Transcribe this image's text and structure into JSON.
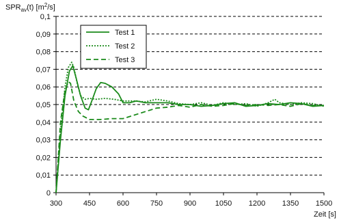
{
  "chart_data": {
    "type": "line",
    "ylabel_main": "SPR",
    "ylabel_sub": "av",
    "ylabel_rest": "(t) [m",
    "ylabel_sup": "2",
    "ylabel_end": "/s]",
    "xlabel": "Zeit [s]",
    "xlim": [
      300,
      1500
    ],
    "ylim": [
      0,
      0.1
    ],
    "x_ticks": [
      300,
      450,
      600,
      750,
      900,
      1050,
      1200,
      1350,
      1500
    ],
    "x_tick_labels": [
      "300",
      "450",
      "600",
      "750",
      "900",
      "1050",
      "1200",
      "1350",
      "1500"
    ],
    "y_ticks": [
      0,
      0.01,
      0.02,
      0.03,
      0.04,
      0.05,
      0.06,
      0.07,
      0.08,
      0.09,
      0.1
    ],
    "y_tick_labels": [
      "0",
      "0,01",
      "0,02",
      "0,03",
      "0,04",
      "0,05",
      "0,06",
      "0,07",
      "0,08",
      "0,09",
      "0,1"
    ],
    "grid": "horizontal-dashed",
    "legend_position": "top-left",
    "line_color": "#1a8a1a",
    "series": [
      {
        "name": "Test 1",
        "style": "solid",
        "x": [
          300,
          320,
          340,
          360,
          375,
          390,
          410,
          430,
          445,
          460,
          480,
          500,
          520,
          550,
          580,
          600,
          630,
          660,
          700,
          750,
          800,
          850,
          900,
          950,
          1000,
          1050,
          1100,
          1150,
          1200,
          1250,
          1300,
          1350,
          1400,
          1450,
          1500
        ],
        "y": [
          0,
          0.03,
          0.055,
          0.069,
          0.072,
          0.065,
          0.055,
          0.048,
          0.047,
          0.052,
          0.059,
          0.0625,
          0.062,
          0.06,
          0.056,
          0.051,
          0.051,
          0.052,
          0.051,
          0.051,
          0.051,
          0.05,
          0.05,
          0.049,
          0.0495,
          0.0505,
          0.051,
          0.049,
          0.0495,
          0.0505,
          0.05,
          0.051,
          0.0505,
          0.049,
          0.0495
        ]
      },
      {
        "name": "Test 2",
        "style": "dotted",
        "x": [
          300,
          320,
          340,
          355,
          370,
          380,
          395,
          410,
          430,
          450,
          480,
          520,
          560,
          600,
          650,
          700,
          750,
          800,
          850,
          900,
          950,
          1000,
          1050,
          1100,
          1150,
          1200,
          1250,
          1280,
          1300,
          1350,
          1400,
          1450,
          1500
        ],
        "y": [
          0,
          0.035,
          0.06,
          0.071,
          0.074,
          0.071,
          0.062,
          0.055,
          0.053,
          0.0535,
          0.053,
          0.0535,
          0.053,
          0.052,
          0.052,
          0.0515,
          0.053,
          0.052,
          0.0505,
          0.05,
          0.051,
          0.0495,
          0.051,
          0.05,
          0.0505,
          0.049,
          0.051,
          0.053,
          0.051,
          0.05,
          0.051,
          0.0505,
          0.049
        ]
      },
      {
        "name": "Test 3",
        "style": "dashed",
        "x": [
          300,
          320,
          340,
          355,
          365,
          380,
          400,
          420,
          450,
          500,
          550,
          600,
          650,
          700,
          750,
          800,
          850,
          900,
          950,
          1000,
          1050,
          1100,
          1150,
          1200,
          1250,
          1300,
          1350,
          1400,
          1450,
          1500
        ],
        "y": [
          0,
          0.04,
          0.058,
          0.063,
          0.062,
          0.052,
          0.046,
          0.0435,
          0.0415,
          0.0415,
          0.042,
          0.042,
          0.044,
          0.046,
          0.048,
          0.0485,
          0.0495,
          0.0485,
          0.05,
          0.049,
          0.0495,
          0.0505,
          0.0495,
          0.05,
          0.0495,
          0.05,
          0.049,
          0.0505,
          0.0495,
          0.0495
        ]
      }
    ]
  }
}
